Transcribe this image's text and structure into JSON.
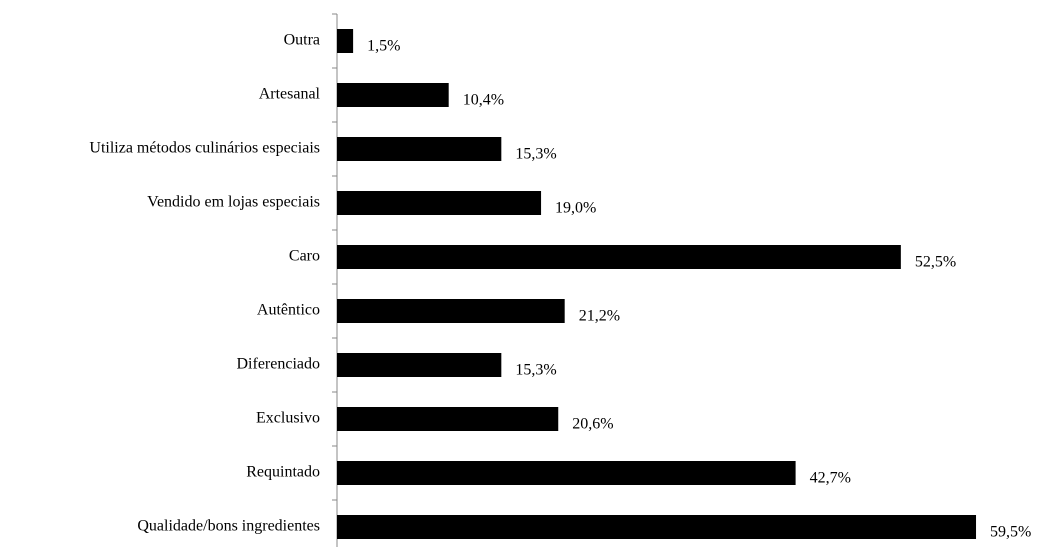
{
  "chart_data": {
    "type": "bar",
    "orientation": "horizontal",
    "categories": [
      "Outra",
      "Artesanal",
      "Utiliza métodos culinários especiais",
      "Vendido em lojas especiais",
      "Caro",
      "Autêntico",
      "Diferenciado",
      "Exclusivo",
      "Requintado",
      "Qualidade/bons ingredientes"
    ],
    "values": [
      1.5,
      10.4,
      15.3,
      19.0,
      52.5,
      21.2,
      15.3,
      20.6,
      42.7,
      59.5
    ],
    "value_labels": [
      "1,5%",
      "10,4%",
      "15,3%",
      "19,0%",
      "52,5%",
      "21,2%",
      "15,3%",
      "20,6%",
      "42,7%",
      "59,5%"
    ],
    "color": "#000000"
  }
}
